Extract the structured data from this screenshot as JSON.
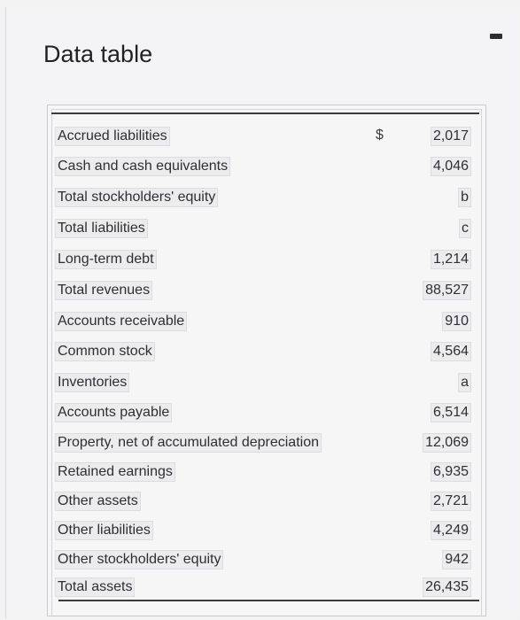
{
  "title": "Data table",
  "currency_symbol": "$",
  "rows": [
    {
      "label": "Accrued liabilities",
      "value": "2,017"
    },
    {
      "label": "Cash and cash equivalents",
      "value": "4,046"
    },
    {
      "label": "Total stockholders' equity",
      "value": "b"
    },
    {
      "label": "Total liabilities",
      "value": "c"
    },
    {
      "label": "Long-term debt",
      "value": "1,214"
    },
    {
      "label": "Total revenues",
      "value": "88,527"
    },
    {
      "label": "Accounts receivable",
      "value": "910"
    },
    {
      "label": "Common stock",
      "value": "4,564"
    },
    {
      "label": "Inventories",
      "value": "a"
    },
    {
      "label": "Accounts payable",
      "value": "6,514"
    },
    {
      "label": "Property, net of accumulated depreciation",
      "value": "12,069"
    },
    {
      "label": "Retained earnings",
      "value": "6,935"
    },
    {
      "label": "Other assets",
      "value": "2,721"
    },
    {
      "label": "Other liabilities",
      "value": "4,249"
    },
    {
      "label": "Other stockholders' equity",
      "value": "942"
    },
    {
      "label": "Total assets",
      "value": "26,435"
    }
  ]
}
